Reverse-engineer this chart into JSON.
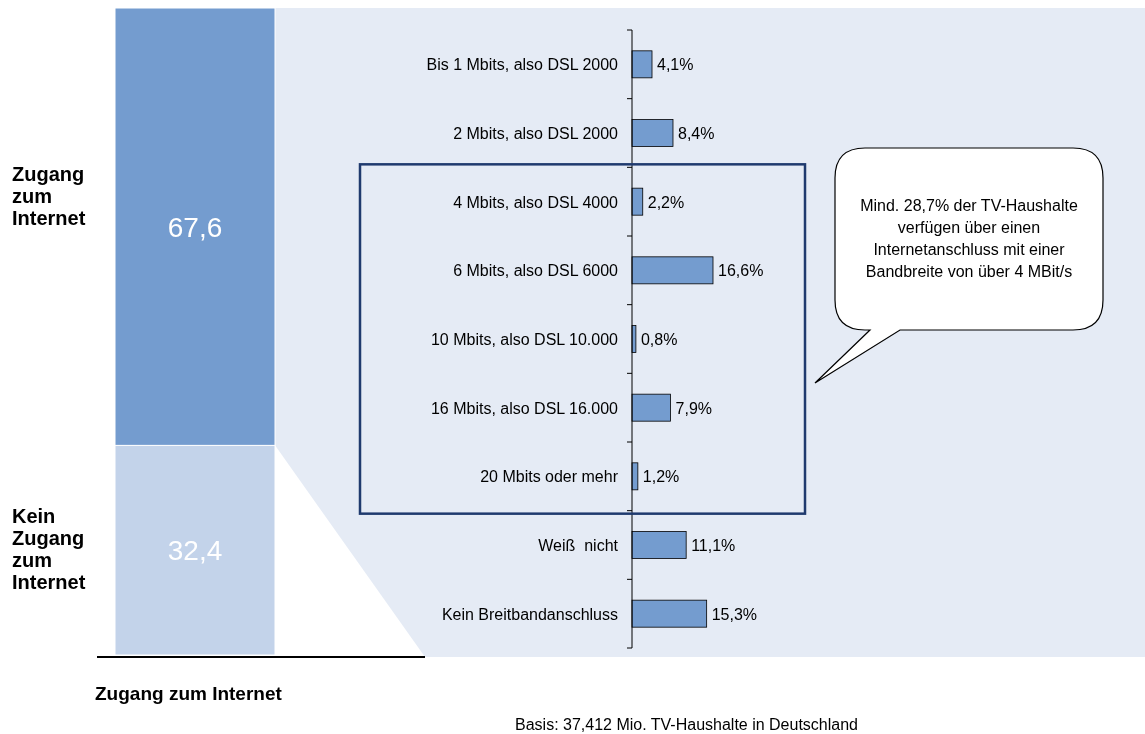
{
  "chart_data": [
    {
      "type": "bar",
      "stacked": true,
      "categories": [
        null
      ],
      "xlabel": "Zugang zum Internet",
      "series": [
        {
          "name": "Kein Zugang zum Internet",
          "color": "#c3d3ea",
          "values": [
            32.4
          ],
          "value_labels": [
            "32,4"
          ]
        },
        {
          "name": "Zugang zum Internet",
          "color": "#749ccf",
          "values": [
            67.6
          ],
          "value_labels": [
            "67,6"
          ]
        }
      ]
    },
    {
      "type": "bar",
      "orientation": "horizontal",
      "color": "#749ccf",
      "categories": [
        "Bis 1 Mbits, also DSL 2000",
        "2 Mbits, also DSL 2000",
        "4 Mbits, also DSL 4000",
        "6 Mbits, also DSL 6000",
        "10 Mbits, also DSL 10.000",
        "16 Mbits, also DSL 16.000",
        "20 Mbits oder mehr",
        "Weiß  nicht",
        "Kein Breitbandanschluss"
      ],
      "values": [
        4.1,
        8.4,
        2.2,
        16.6,
        0.8,
        7.9,
        1.2,
        11.1,
        15.3
      ],
      "value_labels": [
        "4,1%",
        "8,4%",
        "2,2%",
        "16,6%",
        "0,8%",
        "7,9%",
        "1,2%",
        "11,1%",
        "15,3%"
      ],
      "annotations": [
        "Mind. 28,7% der TV-Haushalte verfügen über einen Internetanschluss mit einer Bandbreite von über 4 MBit/s",
        "Basis: 37,412 Mio. TV-Haushalte in Deutschland"
      ]
    }
  ]
}
